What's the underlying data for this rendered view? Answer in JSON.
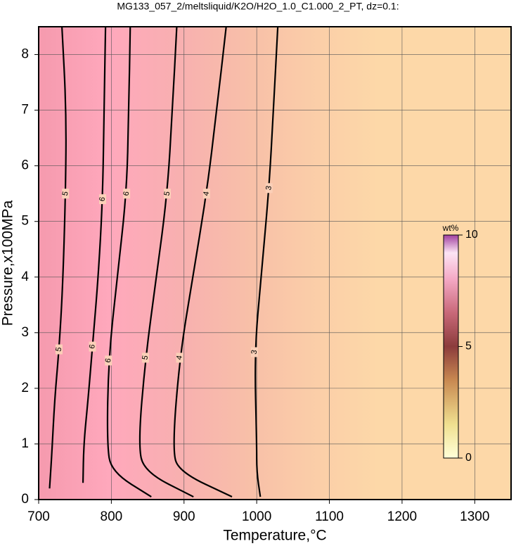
{
  "chart_data": {
    "type": "contour",
    "title": "MG133_057_2/meltsliquid/K2O/H2O_1.0_C1.000_2_PT, dz=0.1:",
    "xlabel": "Temperature,°C",
    "ylabel": "Pressure,x100MPa",
    "xlim": [
      700,
      1350
    ],
    "ylim": [
      0,
      8.5
    ],
    "xticks": [
      700,
      800,
      900,
      1000,
      1100,
      1200,
      1300
    ],
    "yticks": [
      0,
      1,
      2,
      3,
      4,
      5,
      6,
      7,
      8
    ],
    "grid": true,
    "contours": [
      {
        "level": 5,
        "x": [
          715,
          718,
          722,
          728,
          733,
          737,
          738,
          732
        ],
        "y": [
          0.2,
          0.8,
          1.8,
          2.7,
          3.8,
          5.5,
          7.0,
          8.5
        ]
      },
      {
        "level": 6,
        "x": [
          761,
          762,
          768,
          774,
          782,
          788,
          790,
          792
        ],
        "y": [
          0.3,
          1.0,
          1.8,
          2.75,
          4.0,
          5.4,
          7.0,
          8.5
        ]
      },
      {
        "level": 6,
        "x": [
          855,
          800,
          794,
          796,
          808,
          821,
          824,
          826
        ],
        "y": [
          0.05,
          0.5,
          1.0,
          2.5,
          4.0,
          5.5,
          7.0,
          8.5
        ]
      },
      {
        "level": 5,
        "x": [
          913,
          845,
          837,
          847,
          862,
          877,
          884,
          890
        ],
        "y": [
          0.05,
          0.5,
          1.0,
          2.55,
          4.0,
          5.5,
          7.0,
          8.5
        ]
      },
      {
        "level": 4,
        "x": [
          966,
          893,
          884,
          894,
          912,
          931,
          945,
          958
        ],
        "y": [
          0.05,
          0.5,
          0.9,
          2.55,
          4.0,
          5.5,
          7.0,
          8.5
        ]
      },
      {
        "level": 3,
        "x": [
          1005,
          1000,
          1000,
          997,
          1006,
          1017,
          1023,
          1029
        ],
        "y": [
          0.05,
          0.5,
          1.0,
          2.65,
          4.0,
          5.6,
          7.0,
          8.5
        ]
      }
    ],
    "colorbar": {
      "label": "wt%",
      "clim": [
        0,
        10
      ],
      "ticks": [
        0,
        5,
        10
      ]
    }
  }
}
